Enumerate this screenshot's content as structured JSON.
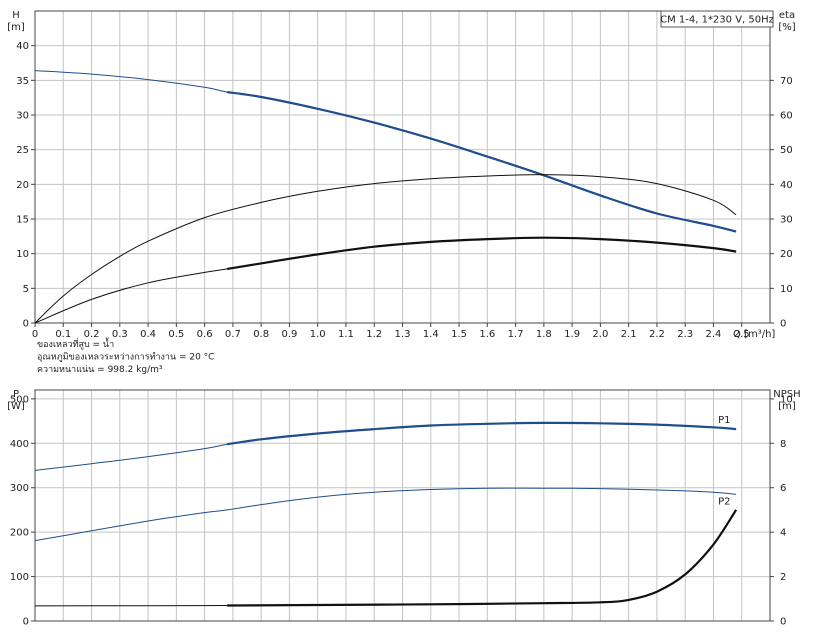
{
  "chart_data": [
    {
      "type": "line",
      "legend_box": "CM 1-4, 1*230 V, 50Hz",
      "xlabel": "Q [m³/h]",
      "ylabel_left": [
        "H",
        "[m]"
      ],
      "ylabel_right": [
        "eta",
        "[%]"
      ],
      "xlim": [
        0,
        2.6
      ],
      "ylim_left": [
        0,
        45
      ],
      "ylim_right": [
        0,
        90
      ],
      "grid": true,
      "x_ticks": [
        "0",
        "0.1",
        "0.2",
        "0.3",
        "0.4",
        "0.5",
        "0.6",
        "0.7",
        "0.8",
        "0.9",
        "1.0",
        "1.1",
        "1.2",
        "1.3",
        "1.4",
        "1.5",
        "1.6",
        "1.7",
        "1.8",
        "1.9",
        "2.0",
        "2.1",
        "2.2",
        "2.3",
        "2.4",
        "2.5"
      ],
      "y_ticks_left": [
        "0",
        "5",
        "10",
        "15",
        "20",
        "25",
        "30",
        "35",
        "40"
      ],
      "y_ticks_right": [
        "0",
        "10",
        "20",
        "30",
        "40",
        "50",
        "60",
        "70"
      ],
      "fluid_info": [
        "ของเหลวที่สูบ = น้ำ",
        "อุณหภูมิของเหลวระหว่างการทำงาน = 20 °C",
        "ความหนาแน่น = 998.2 kg/m³"
      ],
      "series": [
        {
          "axis": "left",
          "color": "#1f4e8c",
          "x": [
            0,
            0.2,
            0.4,
            0.6,
            0.68,
            0.8,
            1.0,
            1.2,
            1.4,
            1.6,
            1.8,
            2.0,
            2.2,
            2.4,
            2.48
          ],
          "y": [
            36.4,
            35.9,
            35.1,
            34.0,
            33.3,
            32.6,
            30.9,
            28.9,
            26.6,
            24.0,
            21.3,
            18.4,
            15.8,
            14.0,
            13.2
          ],
          "operating_range": [
            0.68,
            2.48
          ]
        },
        {
          "axis": "right",
          "color": "#111111",
          "x": [
            0,
            0.1,
            0.2,
            0.3,
            0.4,
            0.6,
            0.8,
            1.0,
            1.2,
            1.4,
            1.6,
            1.8,
            2.0,
            2.2,
            2.4,
            2.48
          ],
          "y": [
            0,
            7.8,
            14.0,
            19.2,
            23.6,
            30.4,
            34.8,
            38.0,
            40.2,
            41.6,
            42.4,
            42.8,
            42.2,
            40.2,
            35.4,
            31.2
          ]
        },
        {
          "axis": "right",
          "color": "#111111",
          "x": [
            0,
            0.2,
            0.4,
            0.6,
            0.68,
            0.8,
            1.0,
            1.2,
            1.4,
            1.6,
            1.8,
            2.0,
            2.2,
            2.4,
            2.48
          ],
          "y": [
            0,
            6.8,
            11.6,
            14.6,
            15.6,
            17.2,
            19.8,
            22.0,
            23.4,
            24.2,
            24.6,
            24.2,
            23.2,
            21.6,
            20.6
          ],
          "operating_range": [
            0.68,
            2.48
          ]
        }
      ]
    },
    {
      "type": "line",
      "xlim": [
        0,
        2.6
      ],
      "ylabel_left": [
        "P",
        "[W]"
      ],
      "ylabel_right": [
        "NPSH",
        "[m]"
      ],
      "ylim_left": [
        0,
        520
      ],
      "ylim_right": [
        0,
        10.4
      ],
      "grid": true,
      "y_ticks_left": [
        "0",
        "100",
        "200",
        "300",
        "400",
        "500"
      ],
      "y_ticks_right": [
        "0",
        "2",
        "4",
        "6",
        "8",
        "10"
      ],
      "series": [
        {
          "name": "P1",
          "axis": "left",
          "color": "#1f4e8c",
          "x": [
            0,
            0.2,
            0.4,
            0.6,
            0.68,
            0.8,
            1.0,
            1.2,
            1.4,
            1.6,
            1.8,
            2.0,
            2.2,
            2.4,
            2.48
          ],
          "y": [
            339,
            354,
            370,
            388,
            398,
            409,
            422,
            432,
            440,
            444,
            446,
            445,
            442,
            436,
            432
          ],
          "operating_range": [
            0.68,
            2.48
          ]
        },
        {
          "name": "P2",
          "axis": "left",
          "color": "#1f4e8c",
          "x": [
            0,
            0.2,
            0.4,
            0.6,
            0.68,
            0.8,
            1.0,
            1.2,
            1.4,
            1.6,
            1.8,
            2.0,
            2.2,
            2.4,
            2.48
          ],
          "y": [
            181,
            203,
            225,
            244,
            250,
            262,
            279,
            290,
            296,
            299,
            299,
            298,
            295,
            290,
            285
          ]
        },
        {
          "axis": "right",
          "color": "#111111",
          "x": [
            0,
            0.4,
            0.68,
            1.0,
            1.4,
            1.8,
            2.0,
            2.1,
            2.2,
            2.3,
            2.4,
            2.48
          ],
          "y": [
            0.68,
            0.69,
            0.7,
            0.72,
            0.75,
            0.8,
            0.84,
            0.95,
            1.32,
            2.1,
            3.45,
            5.0
          ],
          "operating_range": [
            0.68,
            2.48
          ]
        }
      ]
    }
  ]
}
